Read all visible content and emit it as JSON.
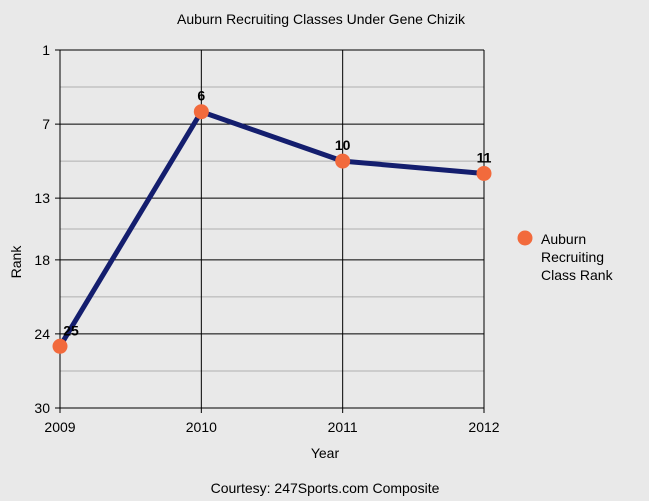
{
  "chart_data": {
    "type": "line",
    "title": "Auburn Recruiting Classes Under Gene Chizik",
    "xlabel": "Year",
    "ylabel": "Rank",
    "footer": "Courtesy: 247Sports.com Composite",
    "x": [
      2009,
      2010,
      2011,
      2012
    ],
    "x_tick_labels": [
      "2009",
      "2010",
      "2011",
      "2012"
    ],
    "y_tick_values": [
      1,
      7,
      13,
      18,
      24,
      30
    ],
    "y_tick_labels": [
      "1",
      "7",
      "13",
      "18",
      "24",
      "30"
    ],
    "ylim": [
      1,
      30
    ],
    "y_inverted": true,
    "grid": true,
    "legend_position": "right",
    "series": [
      {
        "name": "Auburn Recruiting Class Rank",
        "values": [
          25,
          6,
          10,
          11
        ],
        "data_labels": [
          "25",
          "6",
          "10",
          "11"
        ],
        "line_color": "#141e6e",
        "marker_color": "#f26a3c"
      }
    ]
  }
}
